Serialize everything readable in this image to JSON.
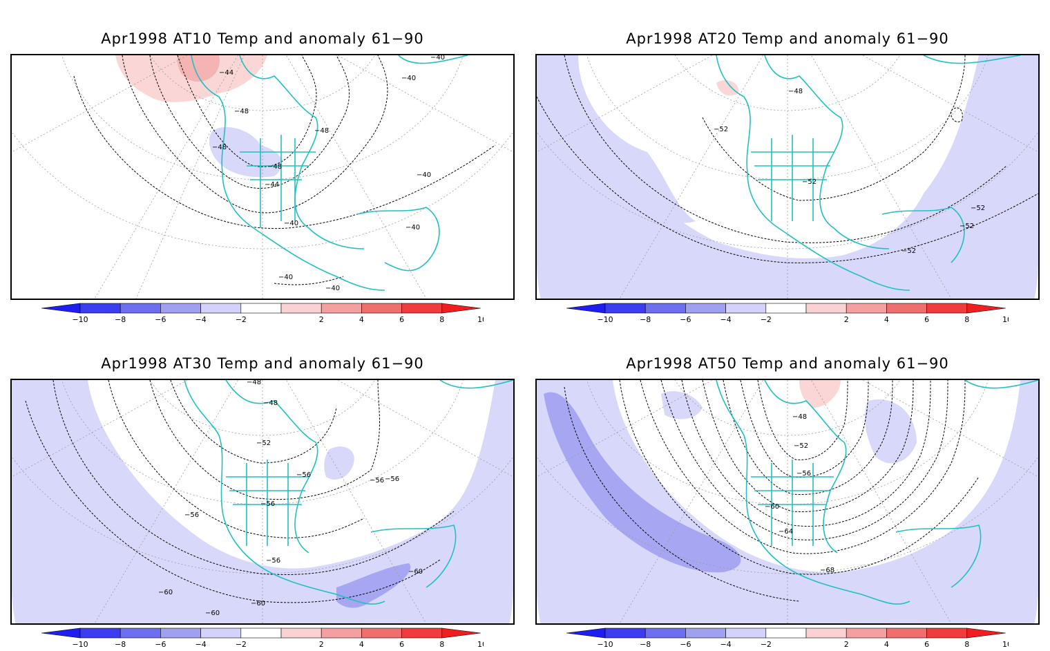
{
  "panels": [
    {
      "title": "Apr1998 AT10 Temp and anomaly 61−90",
      "contour_labels": [
        "−44",
        "−48",
        "−48",
        "−48",
        "−48",
        "−44",
        "−40",
        "−40",
        "−40",
        "−40",
        "−40",
        "−40",
        "−40"
      ],
      "anomaly_regions": [
        "warm anomaly over Bering / Alaska",
        "cool anomaly over western United States"
      ]
    },
    {
      "title": "Apr1998 AT20 Temp and anomaly 61−90",
      "contour_labels": [
        "−48",
        "−52",
        "−52",
        "−52",
        "−52",
        "−52"
      ],
      "anomaly_regions": [
        "cool anomaly over Pacific and Atlantic margins"
      ]
    },
    {
      "title": "Apr1998 AT30 Temp and anomaly 61−90",
      "contour_labels": [
        "−48",
        "−48",
        "−52",
        "−56",
        "−56",
        "−56",
        "−56",
        "−56",
        "−56",
        "−60",
        "−60",
        "−60",
        "−60"
      ],
      "anomaly_regions": [
        "cool anomaly over tropics, stronger over northern South America"
      ]
    },
    {
      "title": "Apr1998 AT50 Temp and anomaly 61−90",
      "contour_labels": [
        "−48",
        "−52",
        "−56",
        "−60",
        "−64",
        "−68"
      ],
      "anomaly_regions": [
        "strong cool anomaly over central Pacific"
      ]
    }
  ],
  "colorbar": {
    "ticks": [
      "−10",
      "−8",
      "−6",
      "−4",
      "−2",
      "2",
      "4",
      "6",
      "8",
      "10"
    ],
    "colors": [
      "#1e1ef0",
      "#3c3cf0",
      "#6e6ef0",
      "#a0a0f0",
      "#d2d2fa",
      "#ffffff",
      "#fad2d2",
      "#f5a0a0",
      "#f06e6e",
      "#f03c3c",
      "#f01e1e"
    ]
  },
  "map_colors": {
    "coast": "#20c0c0",
    "cool_light": "#d8d8fa",
    "cool_mid": "#a6a6f2",
    "warm_light": "#fad6d6",
    "warm_mid": "#f5b4b4",
    "grid": "#9a9a9a",
    "contour": "#000000"
  }
}
